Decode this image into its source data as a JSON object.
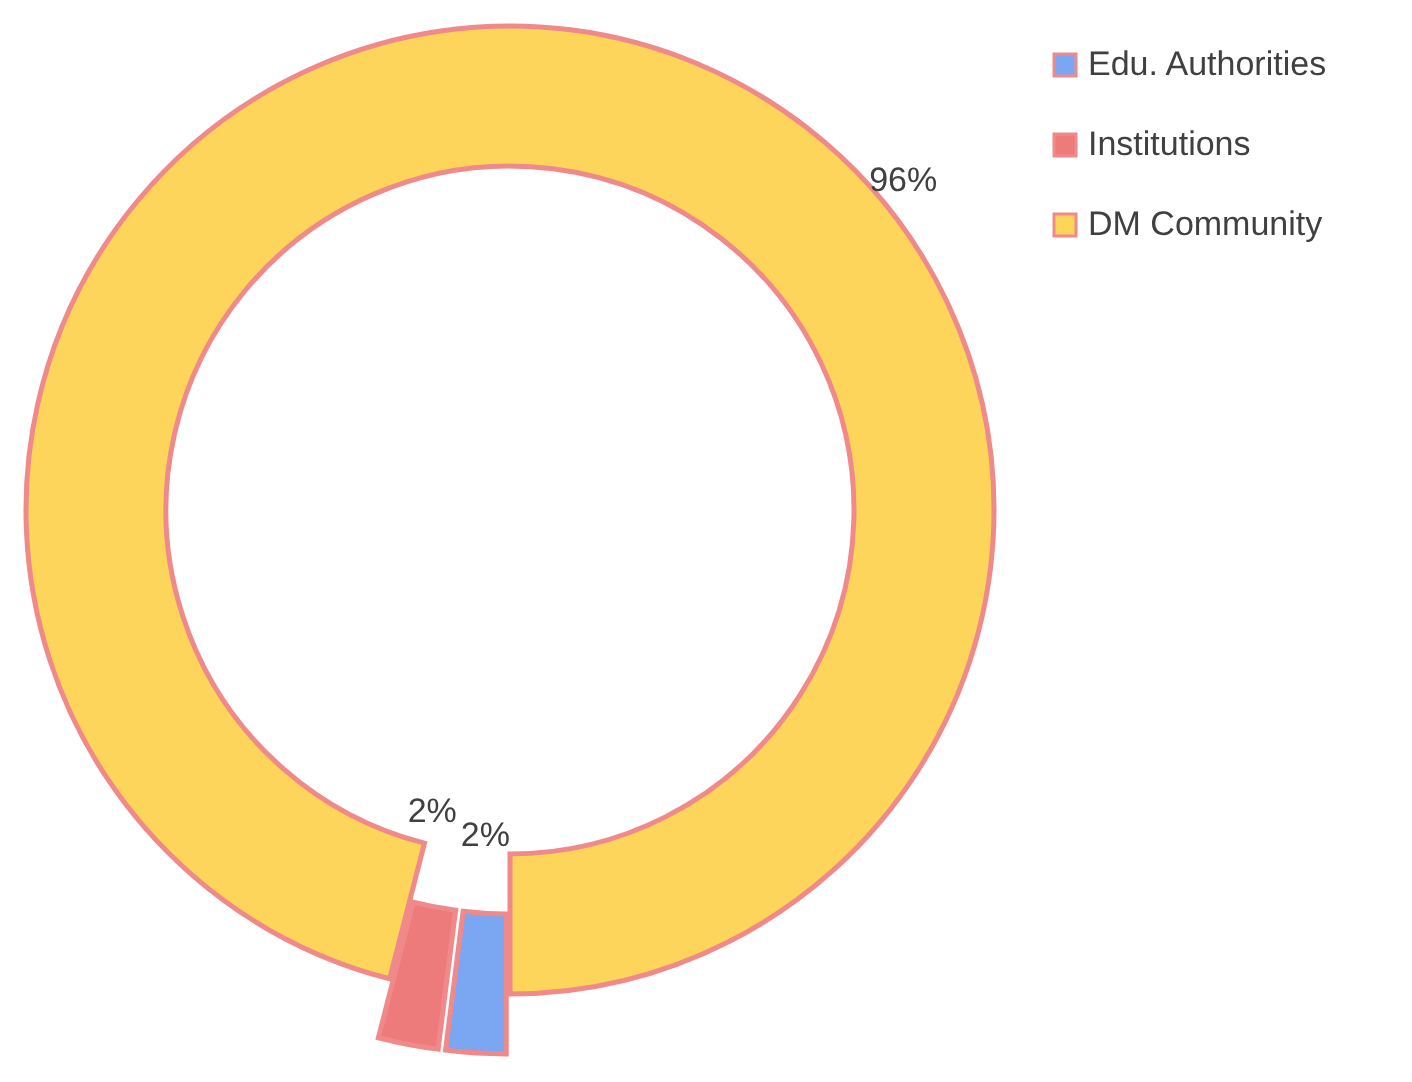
{
  "chart_data": {
    "type": "donut",
    "categories": [
      "Edu. Authorities",
      "Institutions",
      "DM Community"
    ],
    "values": [
      2,
      2,
      96
    ],
    "colors": [
      "#7aa6f2",
      "#ee7b7b",
      "#fdd55a"
    ],
    "value_labels": [
      "2%",
      "2%",
      "96%"
    ],
    "legend": "top right"
  }
}
